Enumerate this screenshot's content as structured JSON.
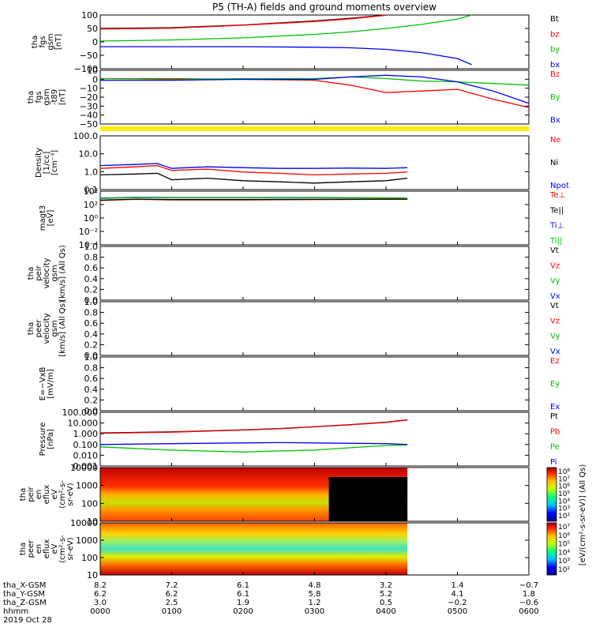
{
  "title": "P5 (TH-A) fields and ground moments overview",
  "panels": [
    {
      "id": "fgs-gsm",
      "ylabel": [
        "tha",
        "fgs",
        "gsm",
        "[nT]"
      ],
      "ticks": [
        "100",
        "50",
        "0",
        "−50",
        "−100"
      ],
      "legend": [
        {
          "text": "Bt",
          "color": "#000000"
        },
        {
          "text": "bz",
          "color": "#ff0000"
        },
        {
          "text": "by",
          "color": "#00c000"
        },
        {
          "text": "bx",
          "color": "#0000ff"
        }
      ]
    },
    {
      "id": "fgs-dsl",
      "ylabel": [
        "tha",
        "fgs",
        "gsm",
        "-t89",
        "[nT]"
      ],
      "ticks": [
        "10",
        "0",
        "−10",
        "−20",
        "−30",
        "−40",
        "−50"
      ],
      "legend": [
        {
          "text": "Bz",
          "color": "#ff0000"
        },
        {
          "text": "By",
          "color": "#00c000"
        },
        {
          "text": "Bx",
          "color": "#0000ff"
        }
      ]
    },
    {
      "id": "density",
      "ylabel": [
        "Density",
        "[1/cc]",
        "[cm⁻³]"
      ],
      "ticks": [
        "100.0",
        "10.0",
        "1.0",
        "0.1"
      ],
      "legend": [
        {
          "text": "Ne",
          "color": "#ff0000"
        },
        {
          "text": "Ni",
          "color": "#000000"
        },
        {
          "text": "Npot",
          "color": "#0000ff"
        }
      ]
    },
    {
      "id": "temperature",
      "ylabel": [
        "magt3",
        "[eV]"
      ],
      "ticks": [
        "10⁴",
        "10²",
        "10⁰",
        "10⁻²",
        "10⁻⁴"
      ],
      "legend": [
        {
          "text": "Te⊥",
          "color": "#ff0000"
        },
        {
          "text": "Te||",
          "color": "#000000"
        },
        {
          "text": "Ti⊥",
          "color": "#0000ff"
        },
        {
          "text": "Ti||",
          "color": "#00c000"
        }
      ]
    },
    {
      "id": "peir-velocity",
      "ylabel": [
        "tha",
        "peir",
        "velocity",
        "gsm",
        "[km/s] (All Qs)"
      ],
      "ticks": [
        "1.0",
        "0.8",
        "0.6",
        "0.4",
        "0.2",
        "0.0"
      ],
      "legend": [
        {
          "text": "Vt",
          "color": "#000000"
        },
        {
          "text": "Vz",
          "color": "#ff0000"
        },
        {
          "text": "Vy",
          "color": "#00c000"
        },
        {
          "text": "Vx",
          "color": "#0000ff"
        }
      ]
    },
    {
      "id": "peer-velocity",
      "ylabel": [
        "tha",
        "peer",
        "velocity",
        "gsm",
        "[km/s] (All Qs)"
      ],
      "ticks": [
        "1.0",
        "0.8",
        "0.6",
        "0.4",
        "0.2",
        "0.0"
      ],
      "legend": [
        {
          "text": "Vt",
          "color": "#000000"
        },
        {
          "text": "Vz",
          "color": "#ff0000"
        },
        {
          "text": "Vy",
          "color": "#00c000"
        },
        {
          "text": "Vx",
          "color": "#0000ff"
        }
      ]
    },
    {
      "id": "efield",
      "ylabel": [
        "E=−VxB",
        "[mV/m]"
      ],
      "ticks": [
        "1.0",
        "0.8",
        "0.6",
        "0.4",
        "0.2",
        "0.0"
      ],
      "legend": [
        {
          "text": "Ez",
          "color": "#ff0000"
        },
        {
          "text": "Ey",
          "color": "#00c000"
        },
        {
          "text": "Ex",
          "color": "#0000ff"
        }
      ]
    },
    {
      "id": "pressure",
      "ylabel": [
        "Pressure",
        "[nPa]"
      ],
      "ticks": [
        "100.000",
        "10.000",
        "1.000",
        "0.100",
        "0.010",
        "0.001"
      ],
      "legend": [
        {
          "text": "Pt",
          "color": "#000000"
        },
        {
          "text": "Pb",
          "color": "#ff0000"
        },
        {
          "text": "Pe",
          "color": "#00c000"
        },
        {
          "text": "Pi",
          "color": "#0000ff"
        }
      ]
    },
    {
      "id": "peir-eflux",
      "ylabel": [
        "tha",
        "peir",
        "en",
        "eflux",
        "eV",
        "(cm²-s-",
        "sr-eV)"
      ],
      "ticks": [
        "10000",
        "1000",
        "100",
        "10"
      ],
      "cbar_ticks": [
        "10⁸",
        "10⁷",
        "10⁶",
        "10⁵",
        "10⁴",
        "10³",
        "10²"
      ]
    },
    {
      "id": "peer-eflux",
      "ylabel": [
        "tha",
        "peer",
        "en",
        "eflux",
        "eV",
        "(cm²-s-",
        "sr-eV)"
      ],
      "ticks": [
        "10000",
        "1000",
        "100",
        "10"
      ],
      "cbar_ticks": [
        "10⁷",
        "10⁶",
        "10⁵",
        "10⁴",
        "10³",
        "10²"
      ]
    }
  ],
  "colorbar_label": "[eV/(cm²-s-sr-eV)] (All Qs)",
  "footer": {
    "row_labels": [
      "tha_X-GSM",
      "tha_Y-GSM",
      "tha_Z-GSM",
      "hhmm",
      "2019 Oct 28"
    ],
    "columns": [
      {
        "x": "8.2",
        "y": "6.2",
        "z": "3.0",
        "t": "0000"
      },
      {
        "x": "7.2",
        "y": "6.2",
        "z": "2.5",
        "t": "0100"
      },
      {
        "x": "6.1",
        "y": "6.1",
        "z": "1.9",
        "t": "0200"
      },
      {
        "x": "4.8",
        "y": "5.8",
        "z": "1.2",
        "t": "0300"
      },
      {
        "x": "3.2",
        "y": "5.2",
        "z": "0.5",
        "t": "0400"
      },
      {
        "x": "1.4",
        "y": "4.1",
        "z": "−0.2",
        "t": "0500"
      },
      {
        "x": "−0.7",
        "y": "1.8",
        "z": "−0.6",
        "t": "0600"
      }
    ]
  },
  "chart_data": [
    {
      "type": "line",
      "panel": "fgs-gsm",
      "x_hours": [
        0,
        1,
        2,
        3,
        3.5,
        4,
        4.5,
        5,
        5.2
      ],
      "ylim": [
        -100,
        100
      ],
      "series": [
        {
          "name": "Bt",
          "color": "#000000",
          "values": [
            50,
            53,
            63,
            78,
            88,
            100,
            null,
            null,
            null
          ]
        },
        {
          "name": "bz",
          "color": "#ff0000",
          "values": [
            48,
            51,
            62,
            76,
            86,
            99,
            null,
            null,
            null
          ]
        },
        {
          "name": "by",
          "color": "#00c000",
          "values": [
            3,
            7,
            15,
            28,
            37,
            50,
            65,
            85,
            100
          ]
        },
        {
          "name": "bx",
          "color": "#0000ff",
          "values": [
            -18,
            -18,
            -18,
            -20,
            -22,
            -28,
            -40,
            -62,
            -85
          ]
        }
      ]
    },
    {
      "type": "line",
      "panel": "fgs-dsl",
      "x_hours": [
        0,
        1,
        2,
        3,
        3.5,
        4,
        4.5,
        5,
        5.5,
        6
      ],
      "ylim": [
        -55,
        10
      ],
      "series": [
        {
          "name": "Bz",
          "color": "#ff0000",
          "values": [
            0,
            0,
            -1,
            -2,
            -8,
            -17,
            -15,
            -13,
            -25,
            -35
          ]
        },
        {
          "name": "By",
          "color": "#00c000",
          "values": [
            0,
            -1,
            0,
            0,
            2,
            0,
            -3,
            -4,
            -6,
            -8
          ]
        },
        {
          "name": "Bx",
          "color": "#0000ff",
          "values": [
            -2,
            -2,
            -1,
            -1,
            2,
            4,
            2,
            -4,
            -15,
            -30
          ]
        }
      ]
    },
    {
      "type": "line",
      "panel": "density",
      "scale": "log",
      "x_hours": [
        0,
        0.5,
        0.8,
        1.0,
        1.5,
        2.0,
        2.5,
        3.0,
        3.5,
        4.0,
        4.3
      ],
      "ylim": [
        0.1,
        200
      ],
      "series": [
        {
          "name": "Ne",
          "color": "#ff0000",
          "values": [
            2,
            2.5,
            3,
            1.5,
            1.8,
            1.2,
            1.0,
            0.8,
            0.9,
            1.0,
            1.2
          ]
        },
        {
          "name": "Ni",
          "color": "#000000",
          "values": [
            0.8,
            0.9,
            1.0,
            0.4,
            0.5,
            0.35,
            0.3,
            0.25,
            0.3,
            0.35,
            0.5
          ]
        },
        {
          "name": "Npot",
          "color": "#0000ff",
          "values": [
            3,
            3.5,
            4,
            2,
            2.5,
            2.2,
            2.0,
            2.0,
            2.1,
            2.0,
            2.2
          ]
        }
      ]
    },
    {
      "type": "line",
      "panel": "temperature",
      "scale": "log",
      "x_hours": [
        0,
        0.5,
        1,
        2,
        3,
        4,
        4.3
      ],
      "ylim": [
        0.0001,
        10000
      ],
      "series": [
        {
          "name": "Te⊥",
          "color": "#ff0000",
          "values": [
            400,
            600,
            500,
            500,
            550,
            600,
            600
          ]
        },
        {
          "name": "Te||",
          "color": "#000000",
          "values": [
            450,
            650,
            550,
            550,
            600,
            650,
            650
          ]
        },
        {
          "name": "Ti⊥",
          "color": "#0000ff",
          "values": [
            900,
            1200,
            1100,
            1100,
            1100,
            1000,
            900
          ]
        },
        {
          "name": "Ti||",
          "color": "#00c000",
          "values": [
            800,
            1100,
            1000,
            1000,
            1000,
            950,
            850
          ]
        }
      ]
    },
    {
      "type": "line",
      "panel": "pressure",
      "scale": "log",
      "x_hours": [
        0,
        1,
        2,
        2.5,
        3,
        3.5,
        4,
        4.3
      ],
      "ylim": [
        0.001,
        100
      ],
      "series": [
        {
          "name": "Pt",
          "color": "#000000",
          "values": [
            1.2,
            1.5,
            2.3,
            3.0,
            4.5,
            7,
            12,
            20
          ]
        },
        {
          "name": "Pb",
          "color": "#ff0000",
          "values": [
            1.1,
            1.4,
            2.2,
            2.9,
            4.4,
            6.8,
            11.5,
            19
          ]
        },
        {
          "name": "Pe",
          "color": "#00c000",
          "values": [
            0.06,
            0.03,
            0.02,
            0.025,
            0.03,
            0.05,
            0.08,
            0.09
          ]
        },
        {
          "name": "Pi",
          "color": "#0000ff",
          "values": [
            0.1,
            0.12,
            0.14,
            0.15,
            0.14,
            0.13,
            0.12,
            0.1
          ]
        }
      ]
    }
  ]
}
